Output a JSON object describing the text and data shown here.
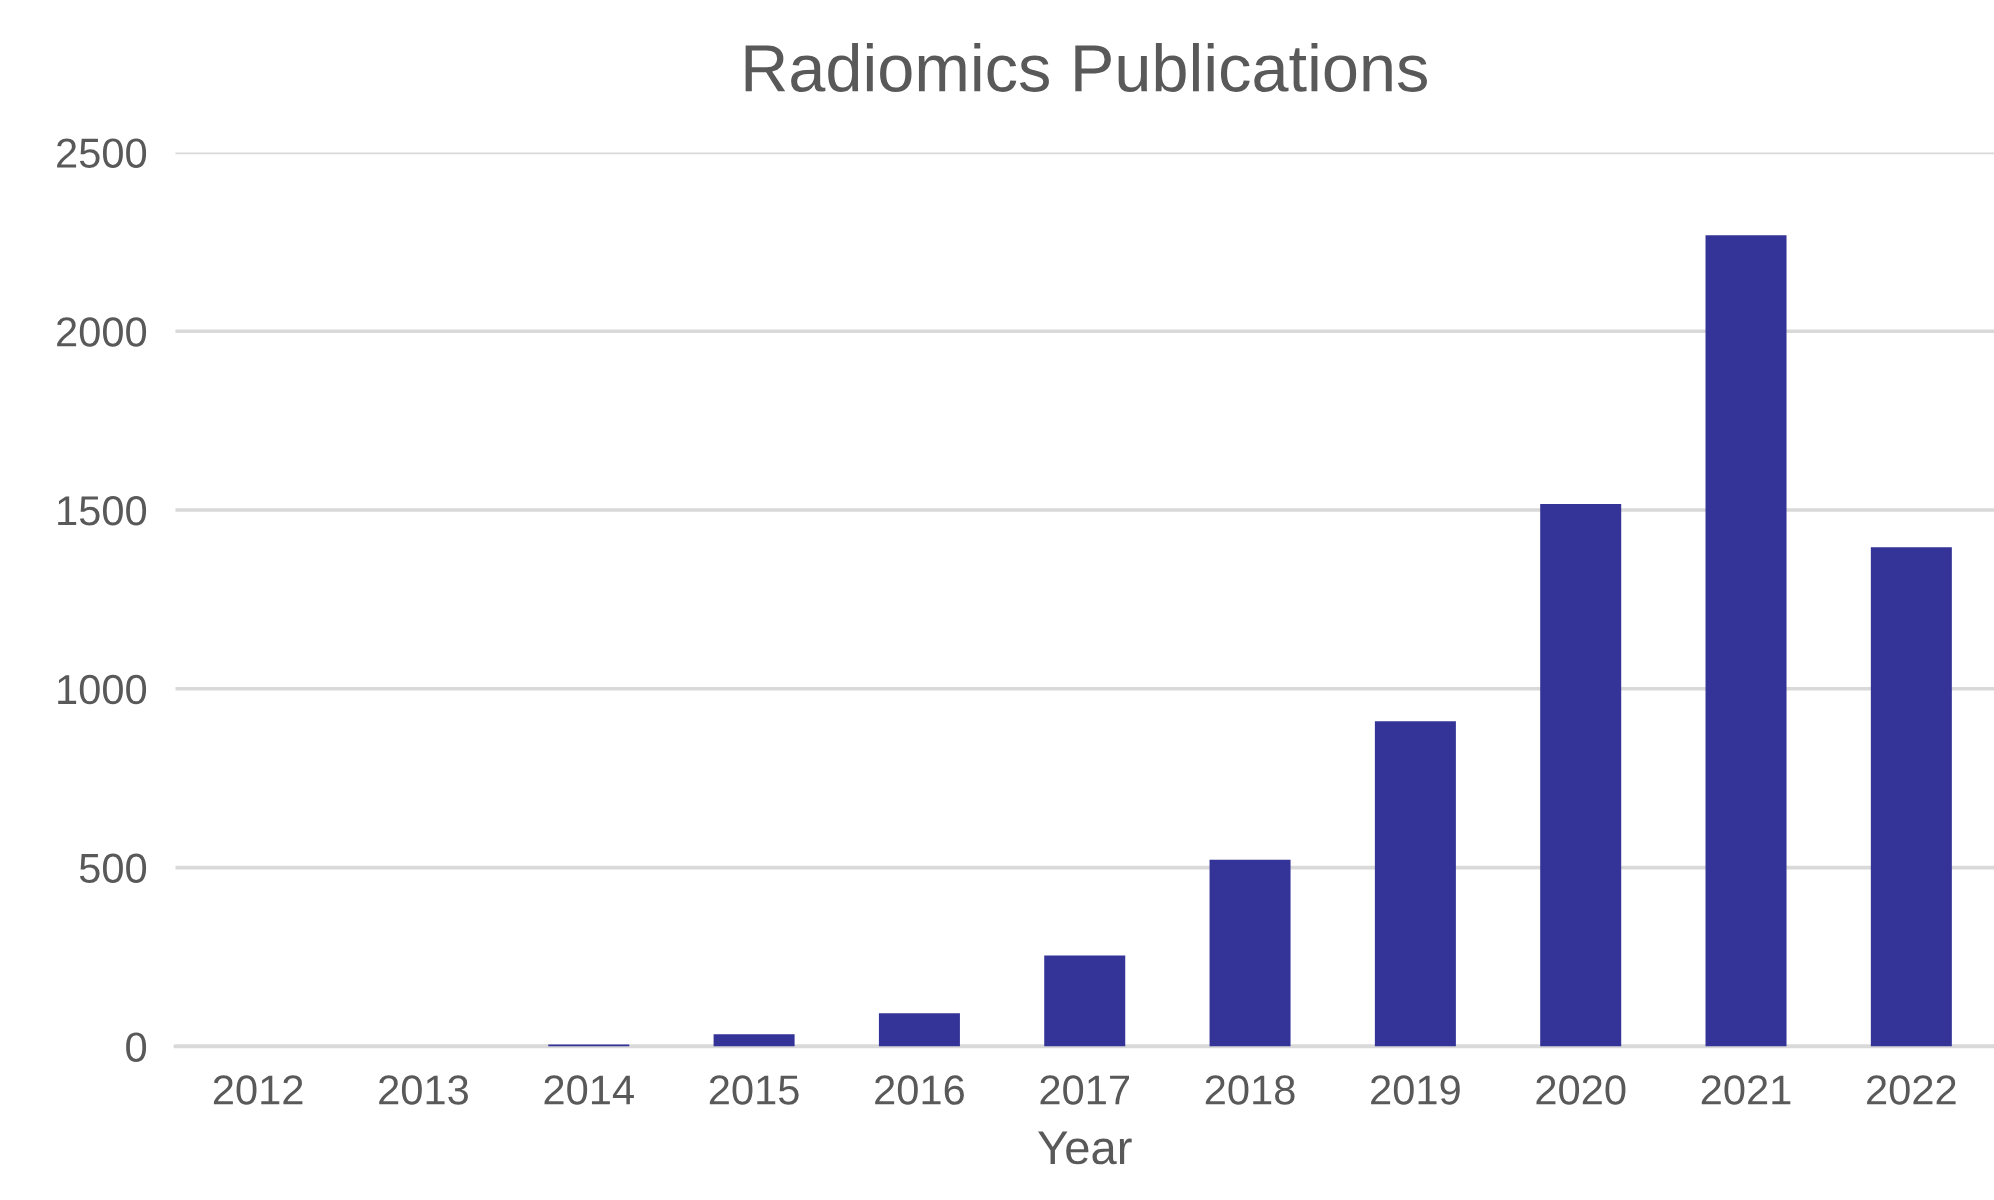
{
  "chart_data": {
    "type": "bar",
    "title": "Radiomics Publications",
    "xlabel": "Year",
    "categories": [
      "2012",
      "2013",
      "2014",
      "2015",
      "2016",
      "2017",
      "2018",
      "2019",
      "2020",
      "2021",
      "2022"
    ],
    "values": [
      0,
      0,
      5,
      34,
      93,
      254,
      522,
      909,
      1517,
      2268,
      1396
    ],
    "color": "#343397",
    "ylim": [
      0,
      2500
    ],
    "yticks": [
      0,
      500,
      1000,
      1500,
      2000,
      2500
    ],
    "grid": "y"
  }
}
